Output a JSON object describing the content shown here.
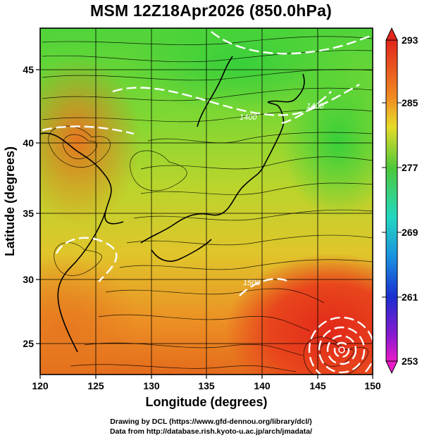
{
  "title": "MSM 12Z18Apr2026 (850.0hPa)",
  "axes": {
    "xlabel": "Longitude (degrees)",
    "ylabel": "Latitude  (degrees)",
    "x_ticks": [
      "120",
      "125",
      "130",
      "135",
      "140",
      "145",
      "150"
    ],
    "y_ticks": [
      "25",
      "30",
      "35",
      "40",
      "45"
    ]
  },
  "colorbar": {
    "labels": [
      "293",
      "285",
      "277",
      "269",
      "261",
      "253"
    ]
  },
  "contour_labels": [
    "1400",
    "1400",
    "1500"
  ],
  "footer": {
    "line1": "Drawing by DCL (https://www.gfd-dennou.org/library/dcl/)",
    "line2": "Data from http://database.rish.kyoto-u.ac.jp/arch/jmadata/"
  },
  "colors": {
    "warm": "#e25a1a",
    "mid": "#f0c02a",
    "cool": "#38d030",
    "contour": "#ffffff",
    "streamline": "#000000"
  }
}
